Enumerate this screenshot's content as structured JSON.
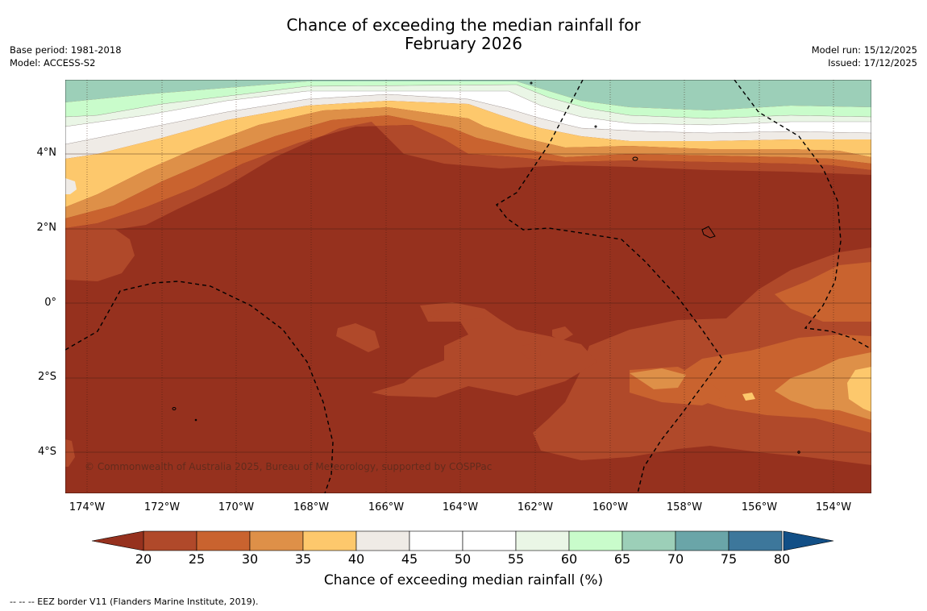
{
  "title_line1": "Chance of exceeding the median rainfall for",
  "title_line2": "February 2026",
  "base_period": "Base period: 1981-2018",
  "model": "Model: ACCESS-S2",
  "model_run": "Model run: 15/12/2025",
  "issued": "Issued: 17/12/2025",
  "copyright": "© Commonwealth of Australia 2025, Bureau of Meteorology, supported by COSPPac",
  "lat_labels": [
    "4°N",
    "2°N",
    "0°",
    "2°S",
    "4°S"
  ],
  "lon_labels": [
    "174°W",
    "172°W",
    "170°W",
    "168°W",
    "166°W",
    "164°W",
    "162°W",
    "160°W",
    "158°W",
    "156°W",
    "154°W"
  ],
  "colorbar": {
    "label": "Chance of exceeding median rainfall (%)",
    "ticks": [
      "20",
      "25",
      "30",
      "35",
      "40",
      "45",
      "50",
      "55",
      "60",
      "65",
      "70",
      "75",
      "80"
    ],
    "colors": [
      "#b0492a",
      "#c9632f",
      "#de9048",
      "#fdc86c",
      "#efebe6",
      "#ffffff",
      "#ffffff",
      "#eaf6e6",
      "#c9fccb",
      "#9ccfb8",
      "#6aa5a8",
      "#3d779b"
    ],
    "under_color": "#96311e",
    "over_color": "#124f86"
  },
  "eez_note": "-- -- -- EEZ border V11 (Flanders Marine Institute, 2019).",
  "colors": {
    "base": "#96311e"
  }
}
